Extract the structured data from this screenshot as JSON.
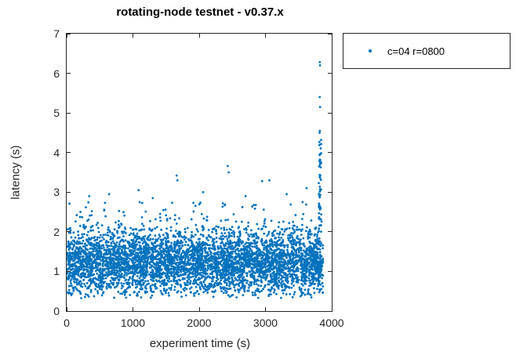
{
  "chart_data": {
    "type": "scatter",
    "title": "rotating-node testnet - v0.37.x",
    "xlabel": "experiment time (s)",
    "ylabel": "latency (s)",
    "xlim": [
      0,
      4000
    ],
    "ylim": [
      0,
      7
    ],
    "xticks": [
      0,
      1000,
      2000,
      3000,
      4000
    ],
    "yticks": [
      0,
      1,
      2,
      3,
      4,
      5,
      6,
      7
    ],
    "grid": false,
    "legend": {
      "position": "outside-top-right",
      "entries": [
        {
          "label": "c=04 r=0800",
          "marker": "point",
          "color": "#0072BD"
        }
      ]
    },
    "series": [
      {
        "name": "c=04 r=0800",
        "color": "#0072BD",
        "marker_diameter_px": 2.8,
        "distribution": {
          "dense_band": {
            "x_range": [
              5,
              3870
            ],
            "y_min": 0.3,
            "y_max": 2.15,
            "y_center": 1.2,
            "points": 4800
          },
          "upper_fringe": {
            "x_range": [
              30,
              3860
            ],
            "y_range": [
              2.05,
              2.75
            ],
            "points": 150
          },
          "outlier_samples": [
            [
              340,
              2.9
            ],
            [
              640,
              2.95
            ],
            [
              1085,
              3.05
            ],
            [
              1300,
              2.85
            ],
            [
              1660,
              3.42
            ],
            [
              1672,
              3.3
            ],
            [
              2060,
              3.0
            ],
            [
              2430,
              3.66
            ],
            [
              2445,
              3.5
            ],
            [
              2700,
              2.9
            ],
            [
              2950,
              3.28
            ],
            [
              3060,
              3.3
            ],
            [
              3320,
              2.95
            ],
            [
              3620,
              3.1
            ]
          ],
          "spike": {
            "x_range": [
              3803,
              3842
            ],
            "y_range": [
              2.15,
              6.3
            ],
            "points": 55,
            "max_value": 6.3
          },
          "spike_samples": [
            [
              3820,
              6.28
            ],
            [
              3823,
              6.2
            ],
            [
              3819,
              5.4
            ],
            [
              3824,
              5.15
            ],
            [
              3821,
              4.55
            ],
            [
              3817,
              4.5
            ],
            [
              3822,
              4.2
            ],
            [
              3820,
              3.95
            ],
            [
              3825,
              3.75
            ]
          ]
        }
      }
    ]
  }
}
